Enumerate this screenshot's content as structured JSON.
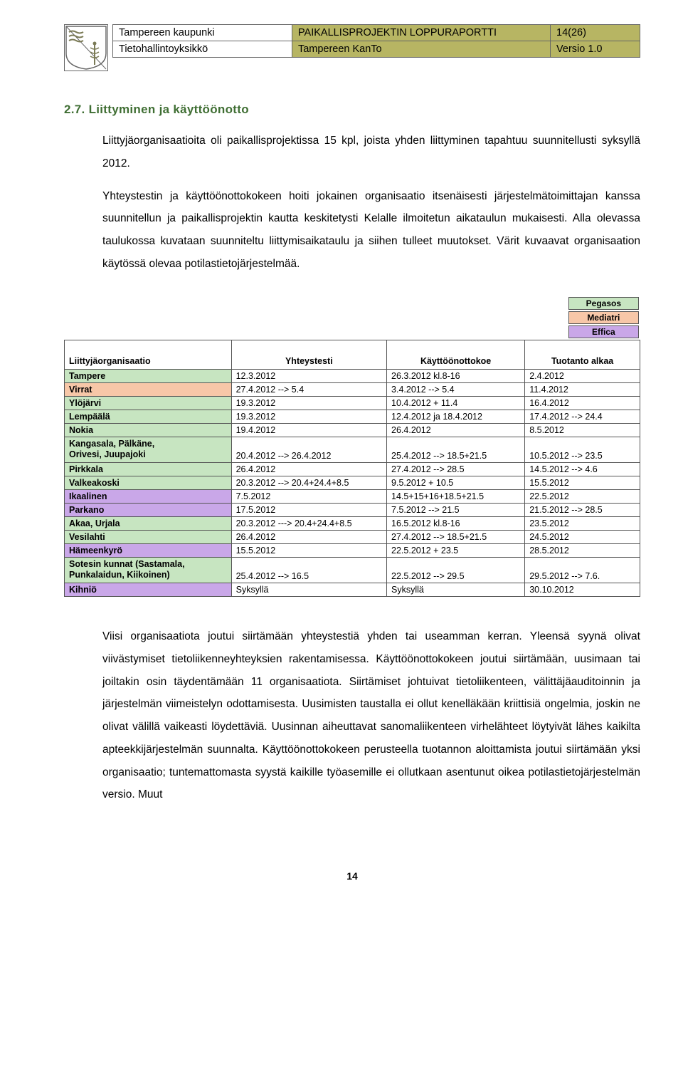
{
  "header": {
    "r1c1": "Tampereen kaupunki",
    "r1c2": "PAIKALLISPROJEKTIN LOPPURAPORTTI",
    "r1c3": "14(26)",
    "r2c1": "Tietohallintoyksikkö",
    "r2c2": "Tampereen KanTo",
    "r2c3": "Versio 1.0"
  },
  "section": {
    "title": "2.7. Liittyminen ja käyttöönotto",
    "para1": "Liittyjäorganisaatioita oli paikallisprojektissa 15 kpl, joista yhden liittyminen tapahtuu suunnitellusti syksyllä 2012.",
    "para2": "Yhteystestin ja käyttöönottokokeen hoiti jokainen organisaatio itsenäisesti järjestelmätoimittajan kanssa suunnitellun ja paikallisprojektin kautta keskitetysti Kelalle ilmoitetun aikataulun mukaisesti. Alla olevassa taulukossa kuvataan suunniteltu liittymisaikataulu ja siihen tulleet muutokset. Värit kuvaavat organisaation käytössä olevaa potilastietojärjestelmää.",
    "para3": "Viisi organisaatiota joutui siirtämään yhteystestiä yhden tai useamman kerran. Yleensä syynä olivat viivästymiset tietoliikenneyhteyksien rakentamisessa. Käyttöönottokokeen joutui siirtämään, uusimaan tai joiltakin osin täydentämään 11 organisaatiota. Siirtämiset johtuivat tietoliikenteen, välittäjäauditoinnin ja järjestelmän viimeistelyn odottamisesta. Uusimisten taustalla ei ollut kenelläkään kriittisiä ongelmia, joskin ne olivat välillä vaikeasti löydettäviä. Uusinnan aiheuttavat sanomaliikenteen virhelähteet löytyivät lähes kaikilta apteekkijärjestelmän suunnalta. Käyttöönottokokeen perusteella tuotannon aloittamista joutui siirtämään yksi organisaatio; tuntemattomasta syystä kaikille työasemille ei ollutkaan asentunut oikea potilastietojärjestelmän versio. Muut"
  },
  "palette": {
    "pegasos": "#c7e5c1",
    "mediatri": "#f7c7a8",
    "effica": "#c9a7e8"
  },
  "legend": {
    "items": [
      "Pegasos",
      "Mediatri",
      "Effica"
    ]
  },
  "table": {
    "columns": [
      "Liittyjäorganisaatio",
      "Yhteystesti",
      "Käyttöönottokoe",
      "Tuotanto alkaa"
    ],
    "col_widths": [
      "29%",
      "27%",
      "24%",
      "20%"
    ],
    "rows": [
      {
        "color": "pegasos",
        "org": "Tampere",
        "c2": "12.3.2012",
        "c3": "26.3.2012 kl.8-16",
        "c4": "2.4.2012"
      },
      {
        "color": "mediatri",
        "org": "Virrat",
        "c2": "27.4.2012 --> 5.4",
        "c3": "3.4.2012 --> 5.4",
        "c4": "11.4.2012"
      },
      {
        "color": "pegasos",
        "org": "Ylöjärvi",
        "c2": "19.3.2012",
        "c3": "10.4.2012 + 11.4",
        "c4": "16.4.2012"
      },
      {
        "color": "pegasos",
        "org": "Lempäälä",
        "c2": "19.3.2012",
        "c3": "12.4.2012  ja 18.4.2012",
        "c4": "17.4.2012 --> 24.4"
      },
      {
        "color": "pegasos",
        "org": "Nokia",
        "c2": "19.4.2012",
        "c3": "26.4.2012",
        "c4": "8.5.2012"
      },
      {
        "color": "pegasos",
        "org": "Kangasala, Pälkäne,\nOrivesi, Juupajoki",
        "c2": "20.4.2012 --> 26.4.2012",
        "c3": "25.4.2012 --> 18.5+21.5",
        "c4": "10.5.2012 --> 23.5"
      },
      {
        "color": "pegasos",
        "org": "Pirkkala",
        "c2": "26.4.2012",
        "c3": "27.4.2012 --> 28.5",
        "c4": "14.5.2012 --> 4.6"
      },
      {
        "color": "pegasos",
        "org": "Valkeakoski",
        "c2": "20.3.2012 --> 20.4+24.4+8.5",
        "c3": "9.5.2012  + 10.5",
        "c4": "15.5.2012"
      },
      {
        "color": "effica",
        "org": "Ikaalinen",
        "c2": "7.5.2012",
        "c3": "14.5+15+16+18.5+21.5",
        "c4": "22.5.2012"
      },
      {
        "color": "effica",
        "org": "Parkano",
        "c2": "17.5.2012",
        "c3": "7.5.2012 --> 21.5",
        "c4": "21.5.2012 --> 28.5"
      },
      {
        "color": "pegasos",
        "org": "Akaa, Urjala",
        "c2": "20.3.2012 ---> 20.4+24.4+8.5",
        "c3": "16.5.2012 kl.8-16",
        "c4": "23.5.2012"
      },
      {
        "color": "pegasos",
        "org": "Vesilahti",
        "c2": "26.4.2012",
        "c3": "27.4.2012 --> 18.5+21.5",
        "c4": "24.5.2012"
      },
      {
        "color": "effica",
        "org": "Hämeenkyrö",
        "c2": "15.5.2012",
        "c3": "22.5.2012 + 23.5",
        "c4": "28.5.2012"
      },
      {
        "color": "pegasos",
        "org": "Sotesin kunnat (Sastamala,\nPunkalaidun, Kiikoinen)",
        "c2": "25.4.2012 --> 16.5",
        "c3": "22.5.2012  --> 29.5",
        "c4": "29.5.2012 --> 7.6."
      },
      {
        "color": "effica",
        "org": "Kihniö",
        "c2": "Syksyllä",
        "c3": "Syksyllä",
        "c4": "30.10.2012"
      }
    ]
  },
  "page_number": "14"
}
